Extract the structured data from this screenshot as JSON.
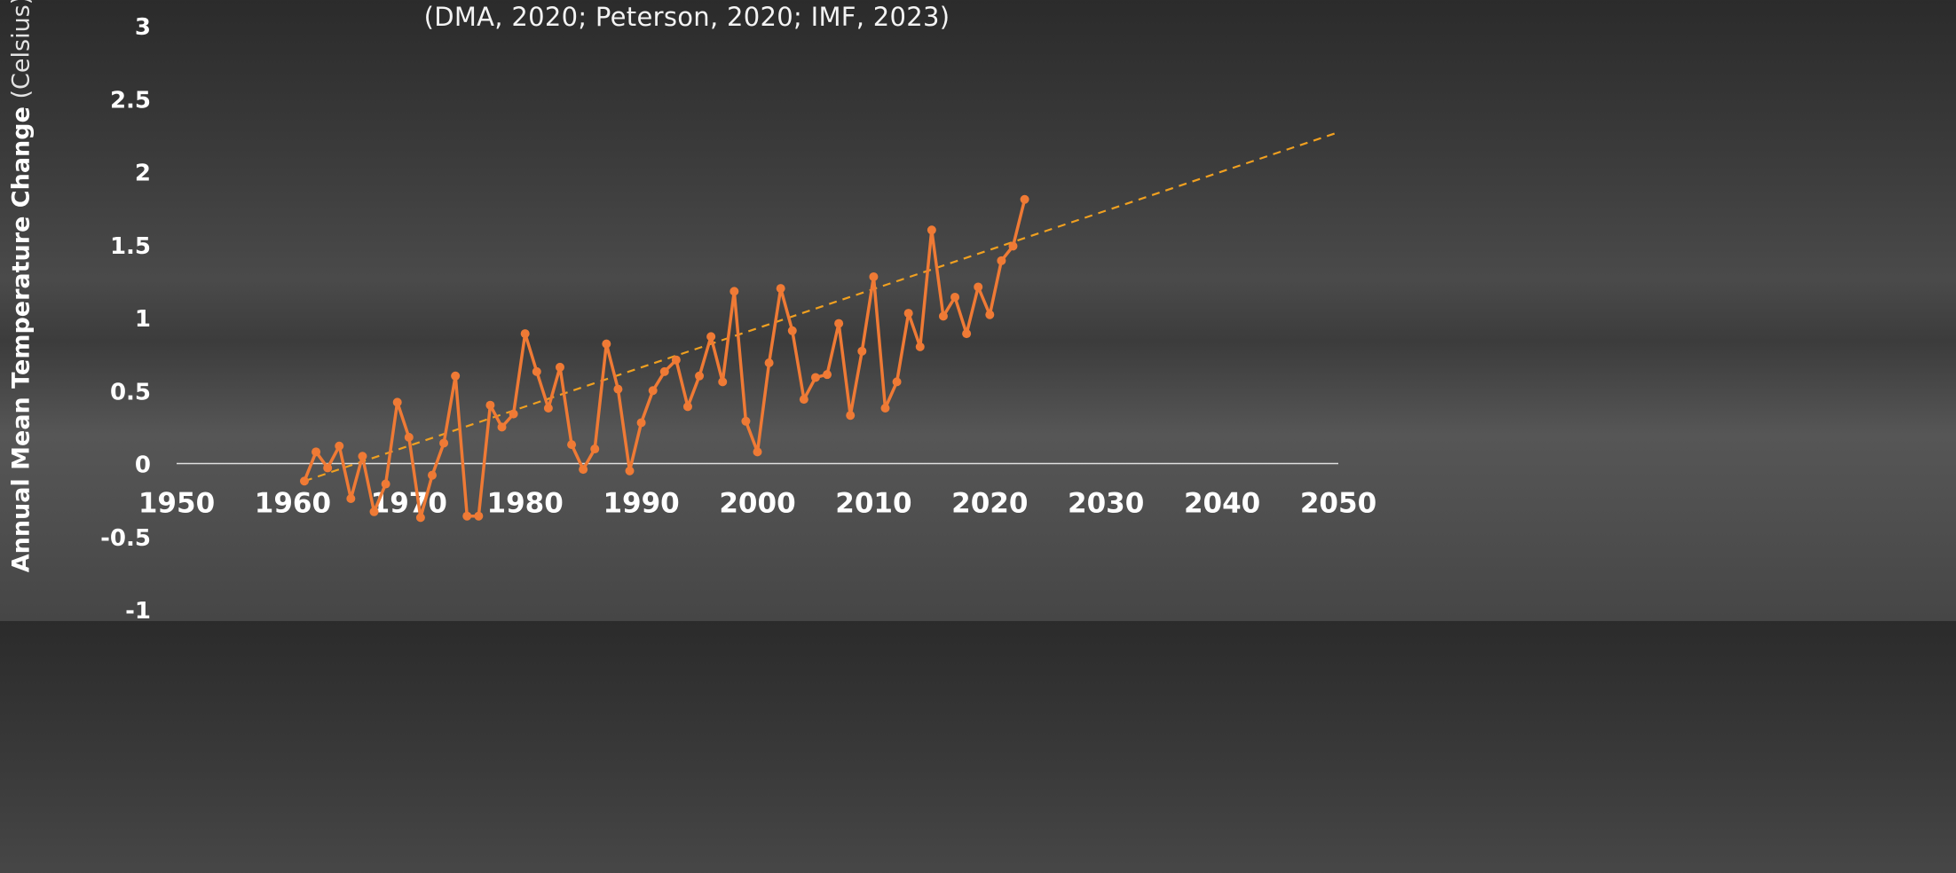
{
  "subtitle": "(DMA, 2020; Peterson, 2020; IMF, 2023)",
  "chart_data": {
    "type": "line",
    "ylabel_main": "Annual Mean Temperature Change",
    "ylabel_unit": "(Celsius)",
    "xlim": [
      1950,
      2050
    ],
    "ylim": [
      -1,
      3
    ],
    "x_ticks": [
      "1950",
      "1960",
      "1970",
      "1980",
      "1990",
      "2000",
      "2010",
      "2020",
      "2030",
      "2040",
      "2050"
    ],
    "y_ticks": [
      "3",
      "2.5",
      "2",
      "1.5",
      "1",
      "0.5",
      "0",
      "-0.5",
      "-1"
    ],
    "zero_line": true,
    "grid": false,
    "colors": {
      "series": "#ef7a35",
      "trend": "#f0a020",
      "zero": "#e0e0e0",
      "text": "#ffffff"
    },
    "series": [
      {
        "x": [
          1961,
          1962,
          1963,
          1964,
          1965,
          1966,
          1967,
          1968,
          1969,
          1970,
          1971,
          1972,
          1973,
          1974,
          1975,
          1976,
          1977,
          1978,
          1979,
          1980,
          1981,
          1982,
          1983,
          1984,
          1985,
          1986,
          1987,
          1988,
          1989,
          1990,
          1991,
          1992,
          1993,
          1994,
          1995,
          1996,
          1997,
          1998,
          1999,
          2000,
          2001,
          2002,
          2003,
          2004,
          2005,
          2006,
          2007,
          2008,
          2009,
          2010,
          2011,
          2012,
          2013,
          2014,
          2015,
          2016,
          2017,
          2018,
          2019,
          2020,
          2021,
          2022,
          2023
        ],
        "y": [
          -0.12,
          0.08,
          -0.03,
          0.12,
          -0.24,
          0.05,
          -0.33,
          -0.14,
          0.42,
          0.18,
          -0.37,
          -0.08,
          0.14,
          0.6,
          -0.36,
          -0.36,
          0.4,
          0.25,
          0.34,
          0.89,
          0.63,
          0.38,
          0.66,
          0.13,
          -0.04,
          0.1,
          0.82,
          0.51,
          -0.05,
          0.28,
          0.5,
          0.63,
          0.71,
          0.39,
          0.6,
          0.87,
          0.56,
          1.18,
          0.29,
          0.08,
          0.69,
          1.2,
          0.91,
          0.44,
          0.59,
          0.61,
          0.96,
          0.33,
          0.77,
          1.28,
          0.38,
          0.56,
          1.03,
          0.8,
          1.6,
          1.01,
          1.14,
          0.89,
          1.21,
          1.02,
          1.39,
          1.49,
          1.81
        ]
      }
    ],
    "trendline": {
      "style": "dashed",
      "x": [
        1961,
        2050
      ],
      "y": [
        -0.12,
        2.27
      ]
    }
  }
}
